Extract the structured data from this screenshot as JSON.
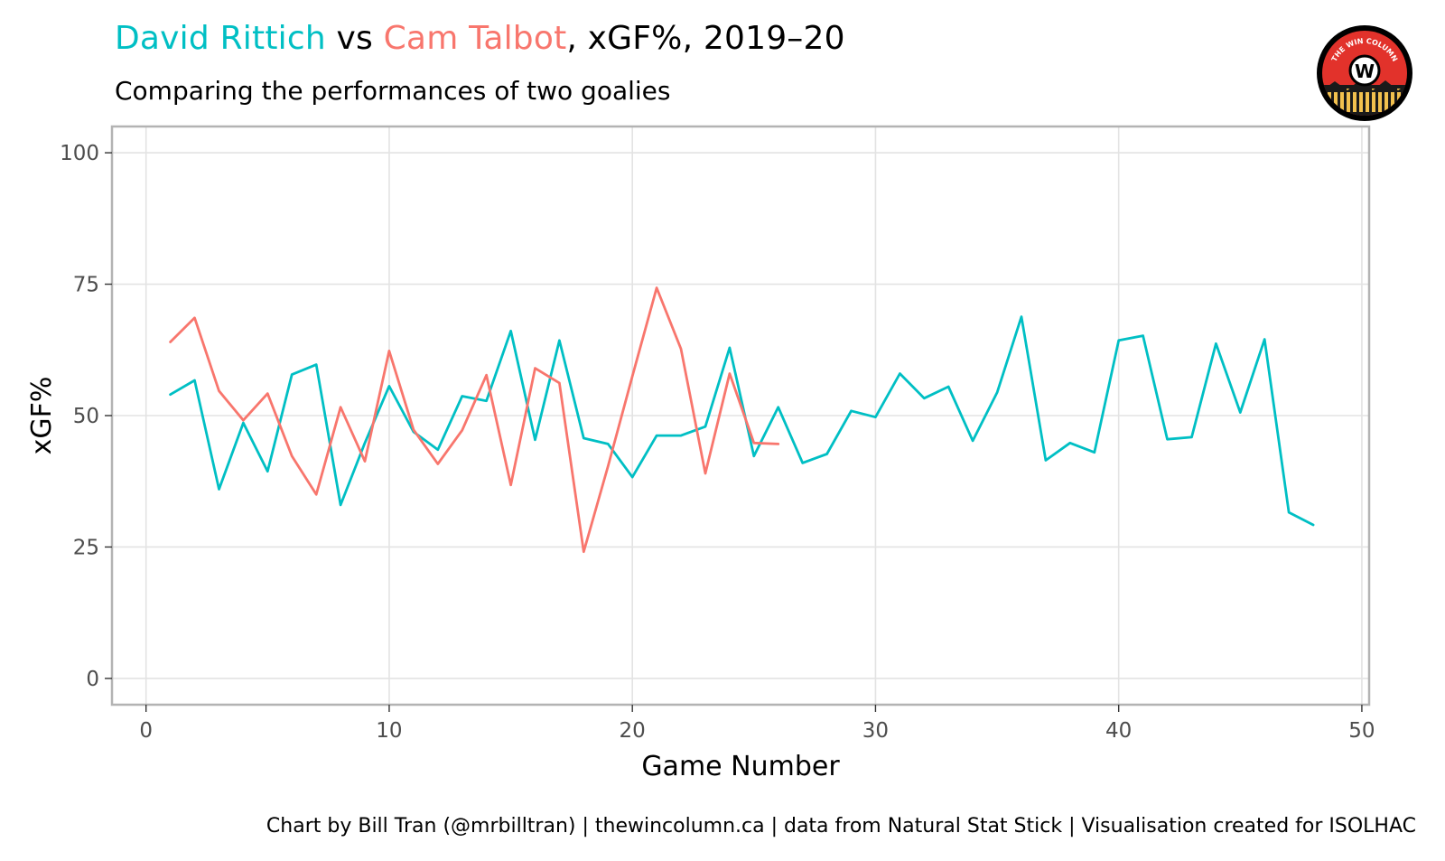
{
  "header": {
    "title_part1": "David Rittich",
    "title_vs": " vs ",
    "title_part2": "Cam Talbot",
    "title_rest": ", xGF%, 2019–20",
    "subtitle": "Comparing the performances of two goalies"
  },
  "logo": {
    "text": "THE WIN COLUMN",
    "letter": "W",
    "colors": {
      "ring": "#000000",
      "inner": "#e2322b",
      "stripes": "#f2c14e"
    }
  },
  "caption": "Chart by Bill Tran (@mrbilltran) | thewincolumn.ca | data from Natural Stat Stick | Visualisation created for ISOLHAC",
  "colors": {
    "rittich": "#00bfc4",
    "talbot": "#f8766d",
    "grid": "#e3e3e3",
    "panel_border": "#b3b3b3"
  },
  "chart_data": {
    "type": "line",
    "xlabel": "Game Number",
    "ylabel": "xGF%",
    "xlim": [
      -1.4,
      50.3
    ],
    "ylim": [
      -5,
      105
    ],
    "x_ticks": [
      0,
      10,
      20,
      30,
      40,
      50
    ],
    "y_ticks": [
      0,
      25,
      50,
      75,
      100
    ],
    "grid": true,
    "legend": "none (series identified by title colors)",
    "series": [
      {
        "name": "David Rittich",
        "color": "#00bfc4",
        "x": [
          1,
          2,
          3,
          4,
          5,
          6,
          7,
          8,
          9,
          10,
          11,
          12,
          13,
          14,
          15,
          16,
          17,
          18,
          19,
          20,
          21,
          22,
          23,
          24,
          25,
          26,
          27,
          28,
          29,
          30,
          31,
          32,
          33,
          34,
          35,
          36,
          37,
          38,
          39,
          40,
          41,
          42,
          43,
          44,
          45,
          46,
          47,
          48
        ],
        "values": [
          54,
          56.7,
          36,
          48.6,
          39.4,
          57.8,
          59.7,
          33,
          44.8,
          55.6,
          46.9,
          43.5,
          53.7,
          52.8,
          66.1,
          45.4,
          64.3,
          45.7,
          44.6,
          38.3,
          46.2,
          46.2,
          47.9,
          62.9,
          42.3,
          51.6,
          41,
          42.7,
          50.9,
          49.7,
          58,
          53.3,
          55.5,
          45.2,
          54.4,
          68.8,
          41.5,
          44.8,
          43,
          64.3,
          65.2,
          45.5,
          45.9,
          63.7,
          50.6,
          64.5,
          31.6,
          29.2
        ]
      },
      {
        "name": "Cam Talbot",
        "color": "#f8766d",
        "x": [
          1,
          2,
          3,
          4,
          5,
          6,
          7,
          8,
          9,
          10,
          11,
          12,
          13,
          14,
          15,
          16,
          17,
          18,
          19,
          20,
          21,
          22,
          23,
          24,
          25,
          26
        ],
        "values": [
          64,
          68.6,
          54.7,
          49.1,
          54.2,
          42.3,
          35,
          51.6,
          41.3,
          62.3,
          47.3,
          40.8,
          47.2,
          57.7,
          36.8,
          59,
          56.2,
          24.1,
          40.4,
          57.5,
          74.3,
          62.7,
          39,
          58,
          44.8,
          44.6
        ]
      }
    ]
  }
}
